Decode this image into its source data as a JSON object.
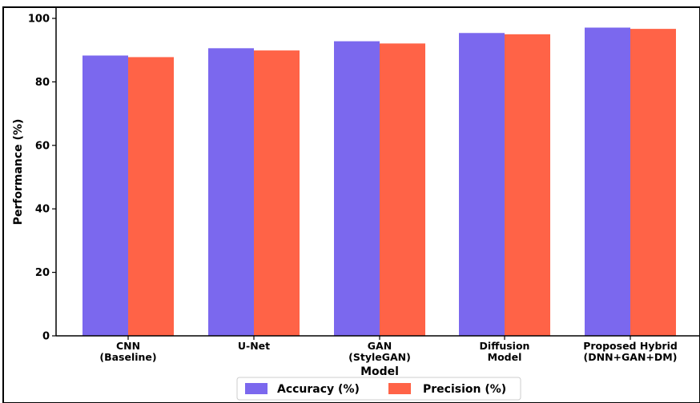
{
  "chart_data": {
    "type": "bar",
    "categories": [
      [
        "CNN",
        "(Baseline)"
      ],
      [
        "U-Net"
      ],
      [
        "GAN",
        "(StyleGAN)"
      ],
      [
        "Diffusion",
        "Model"
      ],
      [
        "Proposed Hybrid",
        "(DNN+GAN+DM)"
      ]
    ],
    "series": [
      {
        "name": "Accuracy (%)",
        "color": "#7b68ee",
        "values": [
          88.3,
          90.6,
          92.8,
          95.4,
          97.1
        ]
      },
      {
        "name": "Precision (%)",
        "color": "#ff6347",
        "values": [
          87.8,
          89.9,
          92.1,
          95.0,
          96.7
        ]
      }
    ],
    "xlabel": "Model",
    "ylabel": "Performance (%)",
    "ylim": [
      0,
      100
    ],
    "yticks": [
      "0",
      "20",
      "40",
      "60",
      "80",
      "100"
    ],
    "grid": false,
    "legend_position": "bottom-center"
  }
}
